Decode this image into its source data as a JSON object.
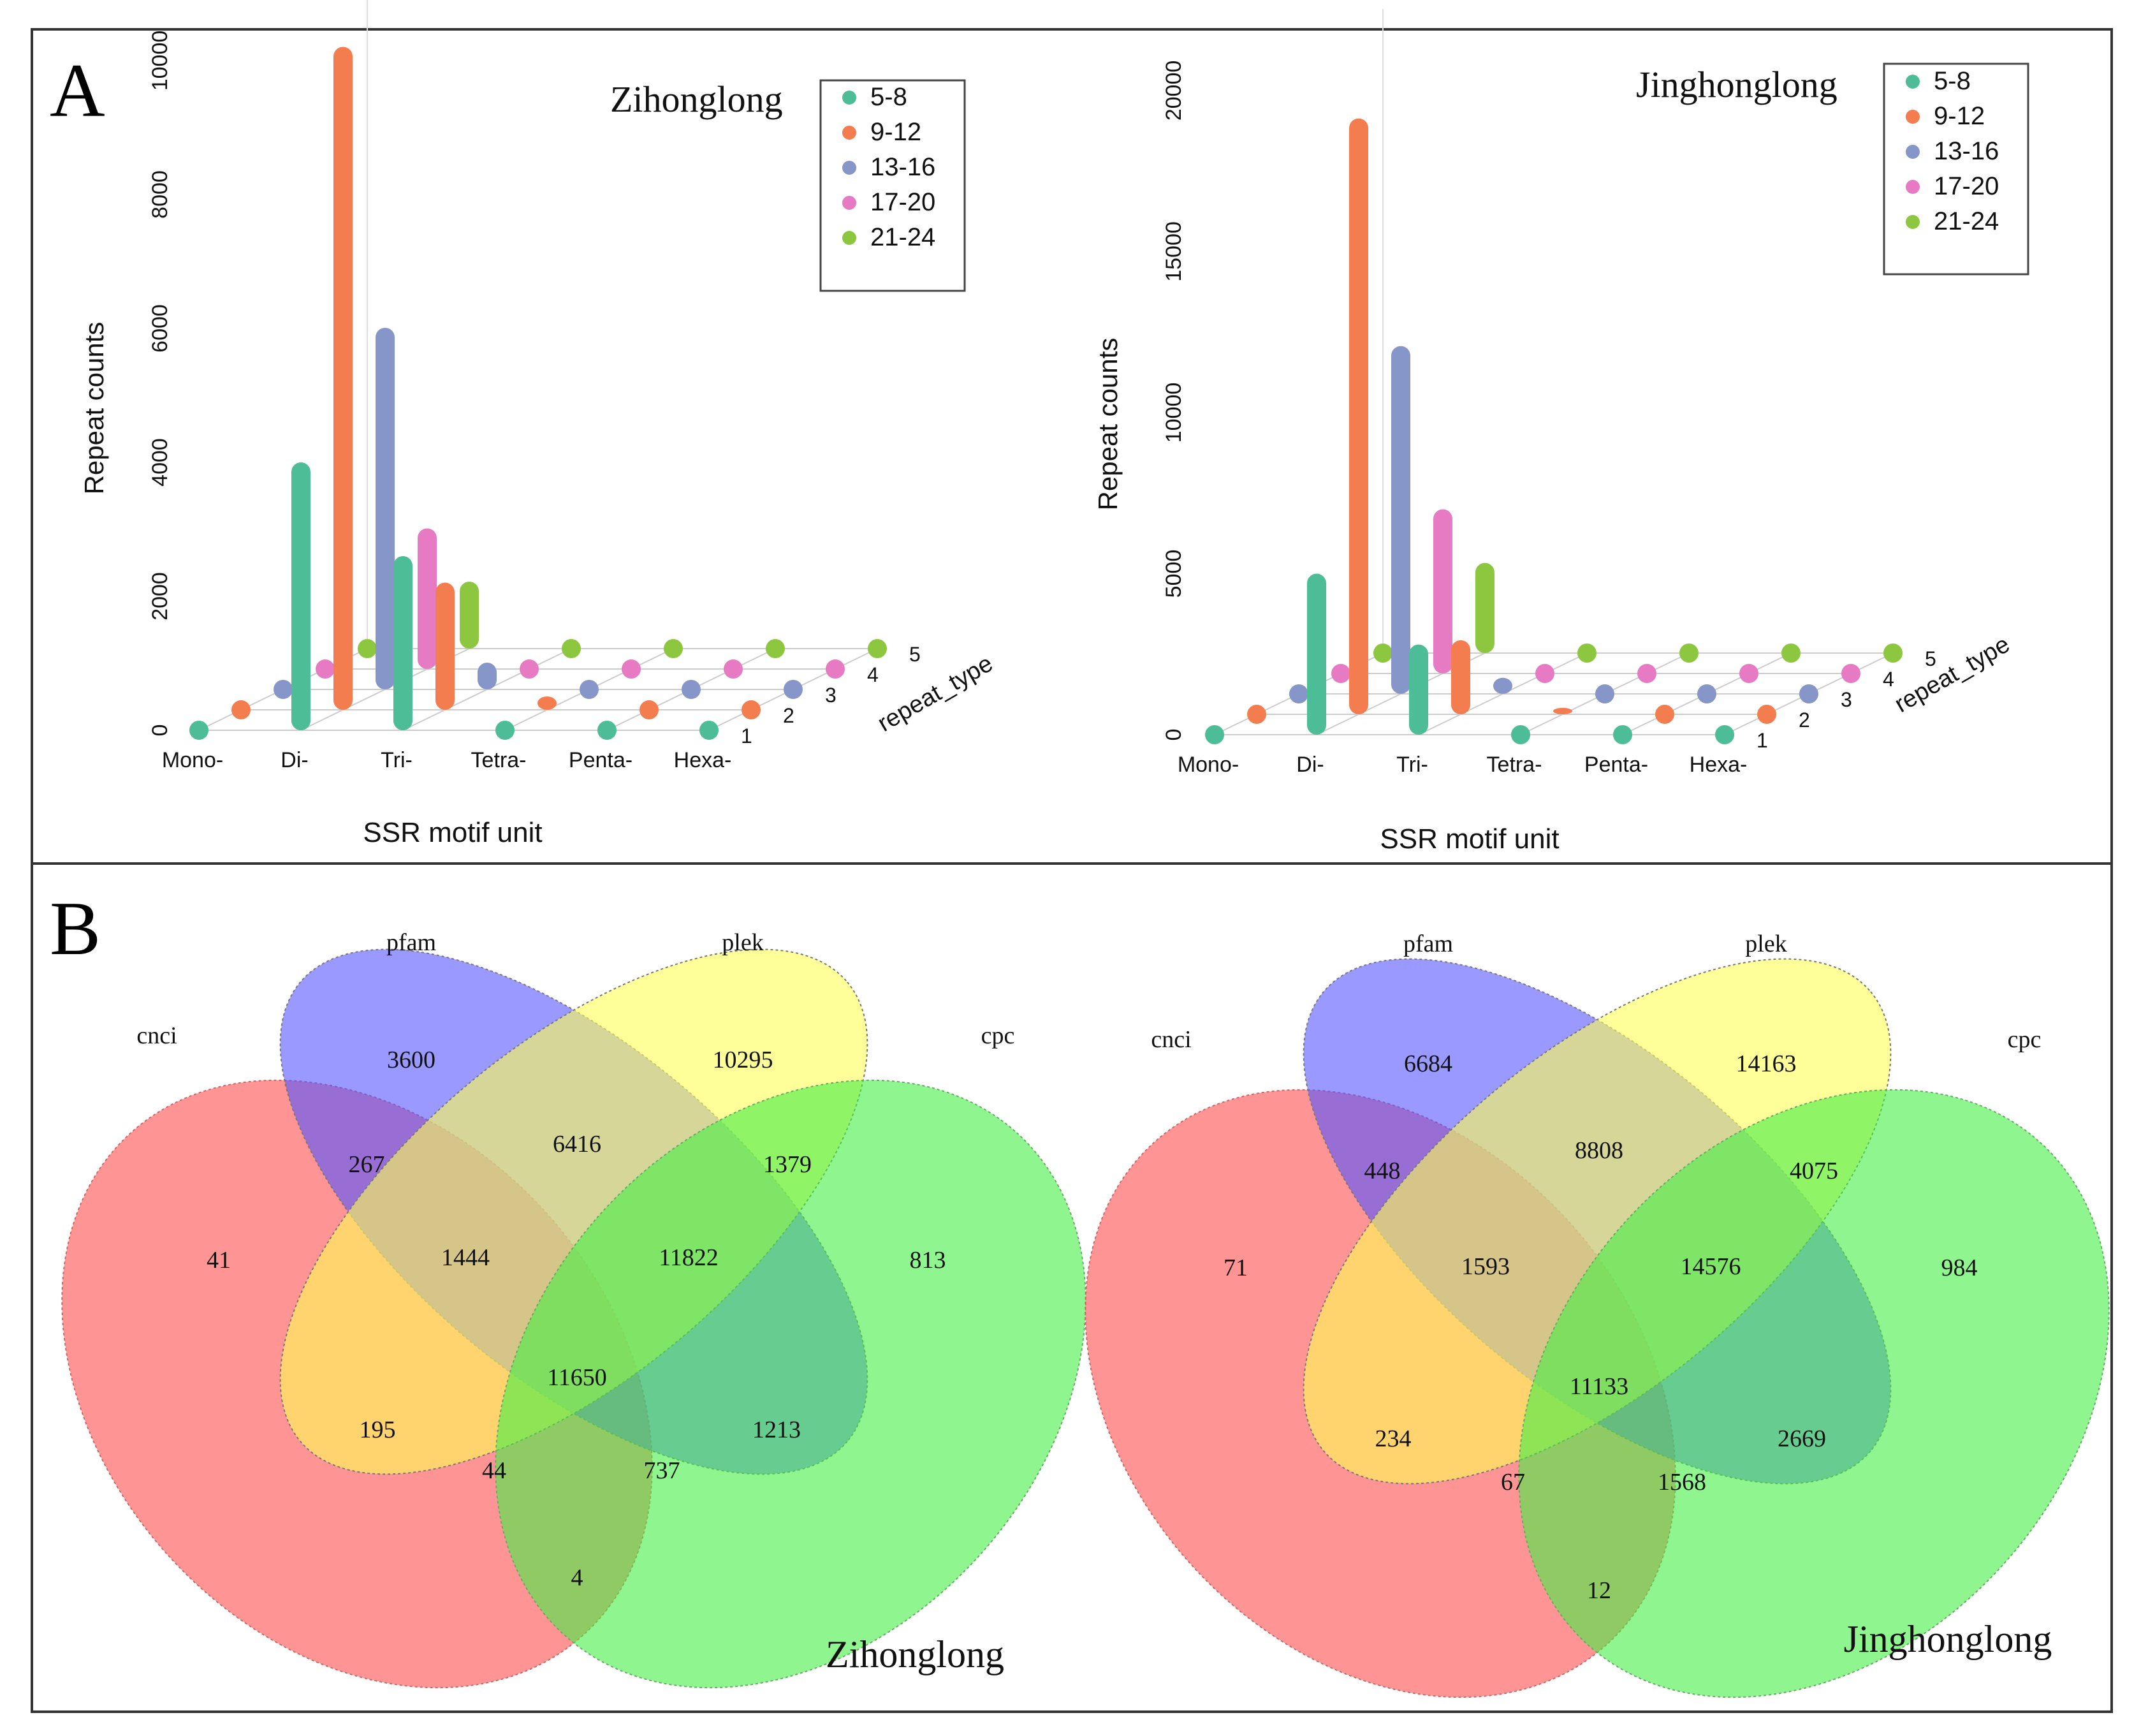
{
  "figure": {
    "panel_a_label": "A",
    "panel_b_label": "B"
  },
  "colors": {
    "group_5_8": "#4dbd97",
    "group_9_12": "#f47d50",
    "group_13_16": "#8796c9",
    "group_17_20": "#e67bc4",
    "group_21_24": "#8dc63f",
    "venn_cnci": "#ff4d4d",
    "venn_pfam": "#5555ff",
    "venn_plek": "#ffff55",
    "venn_cpc": "#44ee44"
  },
  "chart_data": [
    {
      "type": "bar",
      "subtype": "3d-bar",
      "title": "Zihonglong",
      "xlabel": "SSR motif unit",
      "ylabel": "Repeat counts",
      "zlabel": "repeat_type",
      "categories": [
        "Mono-",
        "Di-",
        "Tri-",
        "Tetra-",
        "Penta-",
        "Hexa-"
      ],
      "ylim": [
        0,
        10000
      ],
      "yticks": [
        "0",
        "2000",
        "4000",
        "6000",
        "8000",
        "10000"
      ],
      "depth_ticks": [
        "1",
        "2",
        "3",
        "4",
        "5"
      ],
      "series": [
        {
          "name": "5-8",
          "values": [
            0,
            4000,
            2600,
            0,
            0,
            0
          ]
        },
        {
          "name": "9-12",
          "values": [
            0,
            9900,
            1900,
            200,
            0,
            0
          ]
        },
        {
          "name": "13-16",
          "values": [
            0,
            5400,
            400,
            0,
            0,
            0
          ]
        },
        {
          "name": "17-20",
          "values": [
            0,
            2100,
            0,
            0,
            0,
            0
          ]
        },
        {
          "name": "21-24",
          "values": [
            0,
            1000,
            0,
            0,
            0,
            0
          ]
        }
      ]
    },
    {
      "type": "bar",
      "subtype": "3d-bar",
      "title": "Jinghonglong",
      "xlabel": "SSR motif unit",
      "ylabel": "Repeat counts",
      "zlabel": "repeat_type",
      "categories": [
        "Mono-",
        "Di-",
        "Tri-",
        "Tetra-",
        "Penta-",
        "Hexa-"
      ],
      "ylim": [
        0,
        20000
      ],
      "yticks": [
        "0",
        "5000",
        "10000",
        "15000",
        "20000"
      ],
      "depth_ticks": [
        "1",
        "2",
        "3",
        "4",
        "5"
      ],
      "series": [
        {
          "name": "5-8",
          "values": [
            0,
            5000,
            2800,
            0,
            0,
            0
          ]
        },
        {
          "name": "9-12",
          "values": [
            0,
            18500,
            2300,
            200,
            0,
            0
          ]
        },
        {
          "name": "13-16",
          "values": [
            0,
            10800,
            500,
            0,
            0,
            0
          ]
        },
        {
          "name": "17-20",
          "values": [
            0,
            5100,
            0,
            0,
            0,
            0
          ]
        },
        {
          "name": "21-24",
          "values": [
            0,
            2800,
            0,
            0,
            0,
            0
          ]
        }
      ]
    },
    {
      "type": "venn",
      "title": "Zihonglong",
      "sets": [
        "cnci",
        "pfam",
        "plek",
        "cpc"
      ],
      "regions": {
        "cnci": "41",
        "pfam": "3600",
        "plek": "10295",
        "cpc": "813",
        "cnci_pfam": "267",
        "pfam_plek": "6416",
        "plek_cpc": "1379",
        "cnci_pfam_plek": "1444",
        "pfam_plek_cpc": "11822",
        "all": "11650",
        "cnci_plek": "195",
        "cnci_plek_cpc": "44",
        "cnci_pfam_cpc": "737",
        "pfam_cpc": "1213",
        "cnci_cpc": "4"
      }
    },
    {
      "type": "venn",
      "title": "Jinghonglong",
      "sets": [
        "cnci",
        "pfam",
        "plek",
        "cpc"
      ],
      "regions": {
        "cnci": "71",
        "pfam": "6684",
        "plek": "14163",
        "cpc": "984",
        "cnci_pfam": "448",
        "pfam_plek": "8808",
        "plek_cpc": "4075",
        "cnci_pfam_plek": "1593",
        "pfam_plek_cpc": "14576",
        "all": "11133",
        "cnci_plek": "234",
        "cnci_plek_cpc": "67",
        "cnci_pfam_cpc": "1568",
        "pfam_cpc": "2669",
        "cnci_cpc": "12"
      }
    }
  ]
}
